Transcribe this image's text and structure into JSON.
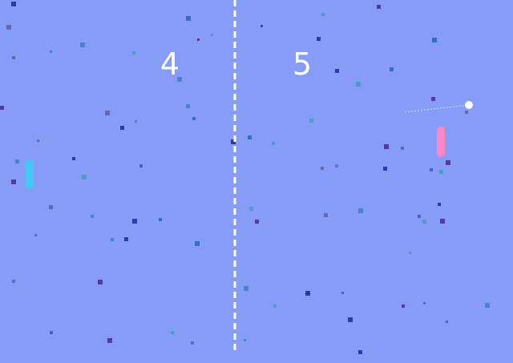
{
  "scores": {
    "left": "4",
    "right": "5"
  },
  "colors": {
    "background": "#869cf7",
    "net": "#ffffff",
    "score_text": "#ffffff",
    "left_paddle": "#45c7f6",
    "right_paddle": "#ff86c6",
    "ball": "#ffffff",
    "ball_trail": "#c9d0ff",
    "particle_palette": [
      "#1a2c9e",
      "#2a63b8",
      "#3f9fc7",
      "#4a2a8e",
      "#5a5fa8",
      "#3b7fc0"
    ]
  }
}
